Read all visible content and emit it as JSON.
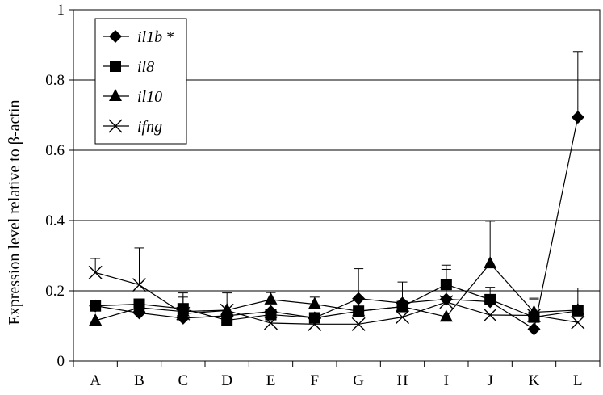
{
  "chart_data": {
    "type": "line",
    "title": "",
    "xlabel": "",
    "ylabel": "Expression level relative to β-actin",
    "categories": [
      "A",
      "B",
      "C",
      "D",
      "E",
      "F",
      "G",
      "H",
      "I",
      "J",
      "K",
      "L"
    ],
    "ylim": [
      0,
      1
    ],
    "yticks": [
      "0",
      "0.2",
      "0.4",
      "0.6",
      "0.8",
      "1"
    ],
    "ytick_values": [
      0,
      0.2,
      0.4,
      0.6,
      0.8,
      1
    ],
    "grid": "horizontal",
    "legend_position": "top-left",
    "series": [
      {
        "name": "il1b",
        "suffix": " *",
        "marker": "diamond",
        "values": [
          0.157,
          0.137,
          0.122,
          0.129,
          0.141,
          0.123,
          0.178,
          0.165,
          0.176,
          0.169,
          0.091,
          0.694
        ],
        "error": [
          0.0,
          0.0,
          0.06,
          0.0,
          0.0,
          0.0,
          0.085,
          0.06,
          0.085,
          0.0,
          0.0,
          0.187
        ]
      },
      {
        "name": "il8",
        "suffix": "",
        "marker": "square",
        "values": [
          0.157,
          0.162,
          0.149,
          0.116,
          0.132,
          0.123,
          0.142,
          0.155,
          0.218,
          0.175,
          0.125,
          0.143
        ],
        "error": [
          0.0,
          0.0,
          0.045,
          0.0,
          0.0,
          0.0,
          0.0,
          0.0,
          0.055,
          0.035,
          0.0,
          0.065
        ]
      },
      {
        "name": "il10",
        "suffix": "",
        "marker": "triangle",
        "values": [
          0.115,
          0.152,
          0.141,
          0.145,
          0.175,
          0.162,
          0.142,
          0.155,
          0.126,
          0.278,
          0.139,
          0.145
        ],
        "error": [
          0.0,
          0.0,
          0.0,
          0.0,
          0.02,
          0.02,
          0.0,
          0.0,
          0.0,
          0.12,
          0.04,
          0.0
        ]
      },
      {
        "name": "ifng",
        "suffix": "",
        "marker": "x",
        "values": [
          0.252,
          0.217,
          0.135,
          0.144,
          0.108,
          0.105,
          0.105,
          0.125,
          0.168,
          0.131,
          0.13,
          0.11
        ],
        "error": [
          0.04,
          0.105,
          0.0,
          0.05,
          0.0,
          0.0,
          0.0,
          0.0,
          0.0,
          0.0,
          0.045,
          0.0
        ]
      }
    ]
  }
}
